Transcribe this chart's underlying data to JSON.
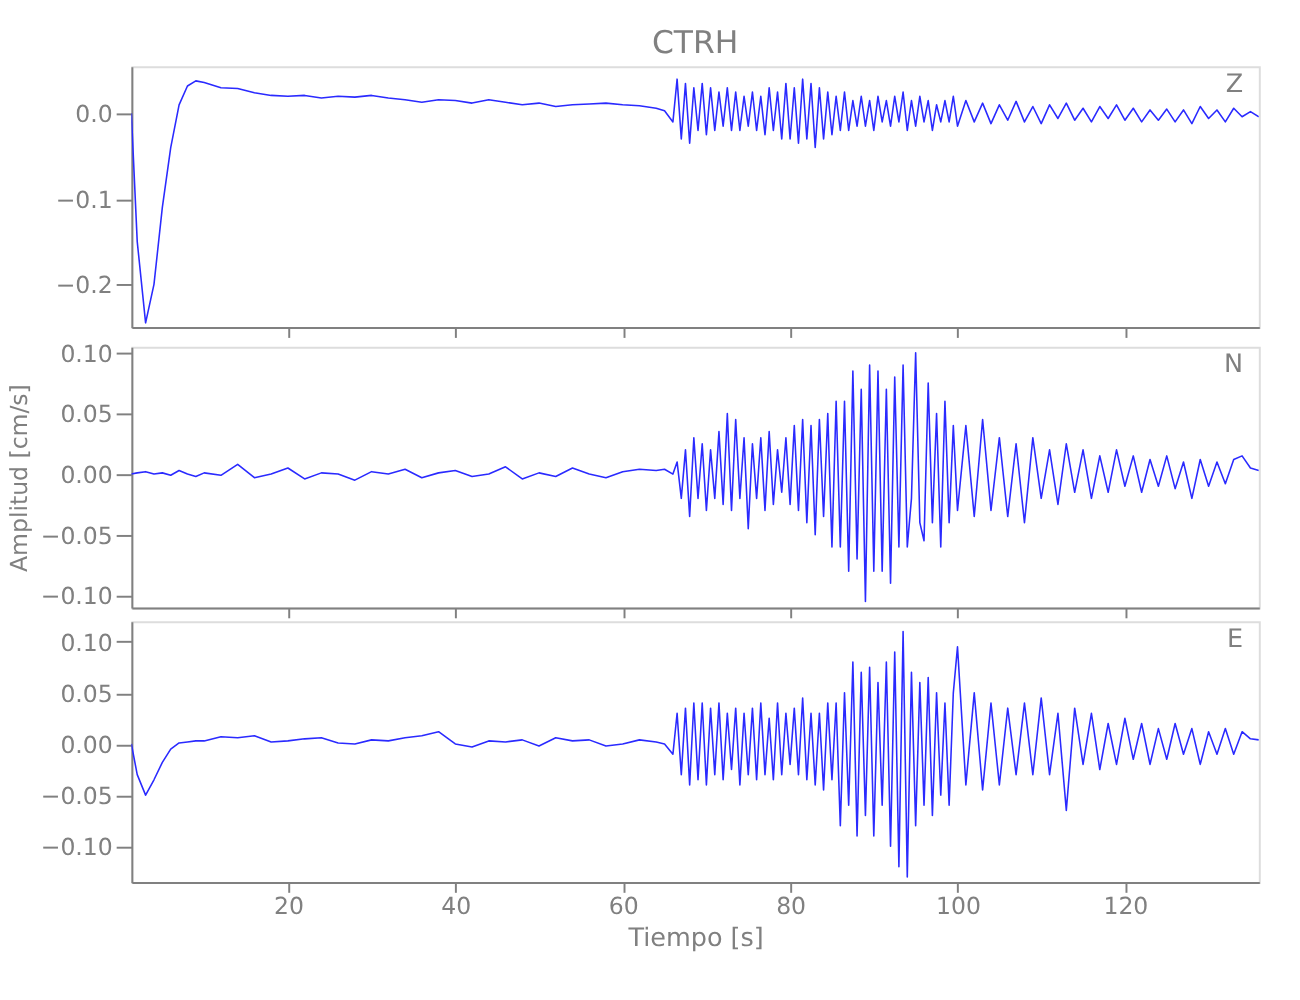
{
  "chart_data": [
    {
      "type": "line",
      "title": "CTRH",
      "annotations": [
        "Z"
      ],
      "tick_labels": "y",
      "grid": false,
      "line_style": "solid",
      "marker": "none",
      "xlim": [
        1.3,
        136
      ],
      "xticks": [
        20,
        40,
        60,
        80,
        100,
        120
      ],
      "ylim": [
        -0.25,
        0.055
      ],
      "yticks": [
        {
          "value": 0,
          "label": "0.0"
        },
        {
          "value": -0.1,
          "label": "−0.1"
        },
        {
          "value": -0.2,
          "label": "−0.2"
        }
      ],
      "x": [
        1.3,
        2,
        3,
        4,
        5,
        6,
        7,
        8,
        9,
        10,
        12,
        14,
        16,
        18,
        20,
        22,
        24,
        26,
        28,
        30,
        32,
        34,
        36,
        38,
        40,
        42,
        44,
        46,
        48,
        50,
        52,
        54,
        56,
        58,
        60,
        62,
        64,
        65,
        66,
        66.5,
        67,
        67.5,
        68,
        68.5,
        69,
        69.5,
        70,
        70.5,
        71,
        71.5,
        72,
        72.5,
        73,
        73.5,
        74,
        74.5,
        75,
        75.5,
        76,
        76.5,
        77,
        77.5,
        78,
        78.5,
        79,
        79.5,
        80,
        80.5,
        81,
        81.5,
        82,
        82.5,
        83,
        83.5,
        84,
        84.5,
        85,
        85.5,
        86,
        86.5,
        87,
        87.5,
        88,
        88.5,
        89,
        89.5,
        90,
        90.5,
        91,
        91.5,
        92,
        92.5,
        93,
        93.5,
        94,
        94.5,
        95,
        95.5,
        96,
        96.5,
        97,
        97.5,
        98,
        98.5,
        99,
        99.5,
        100,
        101,
        102,
        103,
        104,
        105,
        106,
        107,
        108,
        109,
        110,
        111,
        112,
        113,
        114,
        115,
        116,
        117,
        118,
        119,
        120,
        121,
        122,
        123,
        124,
        125,
        126,
        127,
        128,
        129,
        130,
        131,
        132,
        133,
        134,
        135,
        136
      ],
      "series": [
        {
          "color": "#2a2aff",
          "values": [
            0.0,
            -0.15,
            -0.245,
            -0.2,
            -0.11,
            -0.04,
            0.01,
            0.032,
            0.038,
            0.036,
            0.03,
            0.029,
            0.024,
            0.021,
            0.02,
            0.021,
            0.018,
            0.02,
            0.019,
            0.021,
            0.018,
            0.016,
            0.013,
            0.016,
            0.015,
            0.012,
            0.016,
            0.013,
            0.01,
            0.012,
            0.008,
            0.01,
            0.011,
            0.012,
            0.01,
            0.009,
            0.006,
            0.003,
            -0.01,
            0.04,
            -0.03,
            0.035,
            -0.035,
            0.03,
            -0.02,
            0.035,
            -0.025,
            0.03,
            -0.02,
            0.025,
            -0.015,
            0.03,
            -0.02,
            0.025,
            -0.02,
            0.02,
            -0.015,
            0.025,
            -0.02,
            0.02,
            -0.025,
            0.03,
            -0.02,
            0.025,
            -0.03,
            0.035,
            -0.03,
            0.03,
            -0.035,
            0.04,
            -0.03,
            0.035,
            -0.04,
            0.03,
            -0.03,
            0.025,
            -0.025,
            0.02,
            -0.02,
            0.025,
            -0.02,
            0.015,
            -0.015,
            0.02,
            -0.015,
            0.015,
            -0.02,
            0.02,
            -0.01,
            0.015,
            -0.015,
            0.02,
            -0.01,
            0.025,
            -0.02,
            0.015,
            -0.015,
            0.02,
            -0.01,
            0.015,
            -0.02,
            0.01,
            -0.01,
            0.015,
            -0.01,
            0.02,
            -0.015,
            0.015,
            -0.01,
            0.012,
            -0.012,
            0.01,
            -0.008,
            0.014,
            -0.01,
            0.008,
            -0.012,
            0.01,
            -0.006,
            0.012,
            -0.008,
            0.006,
            -0.01,
            0.008,
            -0.006,
            0.01,
            -0.008,
            0.006,
            -0.01,
            0.004,
            -0.008,
            0.005,
            -0.01,
            0.004,
            -0.012,
            0.008,
            -0.006,
            0.004,
            -0.01,
            0.006,
            -0.004,
            0.002,
            -0.004
          ]
        }
      ]
    },
    {
      "type": "line",
      "ylabel": "Amplitud [cm/s]",
      "annotations": [
        "N"
      ],
      "tick_labels": "y",
      "grid": false,
      "line_style": "solid",
      "marker": "none",
      "xlim": [
        1.3,
        136
      ],
      "xticks": [
        20,
        40,
        60,
        80,
        100,
        120
      ],
      "ylim": [
        -0.11,
        0.105
      ],
      "yticks": [
        {
          "value": 0.1,
          "label": "0.10"
        },
        {
          "value": 0.05,
          "label": "0.05"
        },
        {
          "value": 0,
          "label": "0.00"
        },
        {
          "value": -0.05,
          "label": "−0.05"
        },
        {
          "value": -0.1,
          "label": "−0.10"
        }
      ],
      "x": [
        1.3,
        2,
        3,
        4,
        5,
        6,
        7,
        8,
        9,
        10,
        12,
        14,
        16,
        18,
        20,
        22,
        24,
        26,
        28,
        30,
        32,
        34,
        36,
        38,
        40,
        42,
        44,
        46,
        48,
        50,
        52,
        54,
        56,
        58,
        60,
        62,
        64,
        65,
        66,
        66.5,
        67,
        67.5,
        68,
        68.5,
        69,
        69.5,
        70,
        70.5,
        71,
        71.5,
        72,
        72.5,
        73,
        73.5,
        74,
        74.5,
        75,
        75.5,
        76,
        76.5,
        77,
        77.5,
        78,
        78.5,
        79,
        79.5,
        80,
        80.5,
        81,
        81.5,
        82,
        82.5,
        83,
        83.5,
        84,
        84.5,
        85,
        85.5,
        86,
        86.5,
        87,
        87.5,
        88,
        88.5,
        89,
        89.5,
        90,
        90.5,
        91,
        91.5,
        92,
        92.5,
        93,
        93.5,
        94,
        94.5,
        95,
        95.5,
        96,
        96.5,
        97,
        97.5,
        98,
        98.5,
        99,
        99.5,
        100,
        101,
        102,
        103,
        104,
        105,
        106,
        107,
        108,
        109,
        110,
        111,
        112,
        113,
        114,
        115,
        116,
        117,
        118,
        119,
        120,
        121,
        122,
        123,
        124,
        125,
        126,
        127,
        128,
        129,
        130,
        131,
        132,
        133,
        134,
        135,
        136
      ],
      "series": [
        {
          "color": "#2a2aff",
          "values": [
            0.0,
            0.001,
            0.002,
            0.0,
            0.001,
            -0.001,
            0.003,
            0.0,
            -0.002,
            0.001,
            -0.001,
            0.008,
            -0.003,
            0.0,
            0.005,
            -0.004,
            0.001,
            0.0,
            -0.005,
            0.002,
            0.0,
            0.004,
            -0.003,
            0.001,
            0.003,
            -0.002,
            0.0,
            0.006,
            -0.004,
            0.001,
            -0.002,
            0.005,
            0.0,
            -0.003,
            0.002,
            0.004,
            0.003,
            0.004,
            0.0,
            0.01,
            -0.02,
            0.02,
            -0.035,
            0.03,
            -0.02,
            0.025,
            -0.03,
            0.02,
            -0.02,
            0.035,
            -0.025,
            0.05,
            -0.03,
            0.045,
            -0.02,
            0.03,
            -0.045,
            0.025,
            -0.02,
            0.03,
            -0.03,
            0.035,
            -0.025,
            0.02,
            -0.015,
            0.03,
            -0.025,
            0.04,
            -0.03,
            0.045,
            -0.04,
            0.04,
            -0.05,
            0.045,
            -0.035,
            0.05,
            -0.06,
            0.06,
            -0.06,
            0.06,
            -0.08,
            0.085,
            -0.07,
            0.07,
            -0.105,
            0.09,
            -0.08,
            0.085,
            -0.08,
            0.07,
            -0.09,
            0.08,
            -0.06,
            0.09,
            -0.06,
            -0.02,
            0.1,
            -0.04,
            -0.055,
            0.075,
            -0.04,
            0.05,
            -0.06,
            0.06,
            -0.04,
            0.04,
            -0.03,
            0.04,
            -0.035,
            0.045,
            -0.03,
            0.03,
            -0.035,
            0.025,
            -0.04,
            0.03,
            -0.02,
            0.02,
            -0.025,
            0.025,
            -0.015,
            0.02,
            -0.02,
            0.015,
            -0.015,
            0.02,
            -0.01,
            0.015,
            -0.015,
            0.012,
            -0.01,
            0.015,
            -0.012,
            0.01,
            -0.02,
            0.012,
            -0.01,
            0.01,
            -0.008,
            0.012,
            0.015,
            0.005,
            0.003
          ]
        }
      ]
    },
    {
      "type": "line",
      "xlabel": "Tiempo [s]",
      "annotations": [
        "E"
      ],
      "grid": false,
      "line_style": "solid",
      "marker": "none",
      "xlim": [
        1.3,
        136
      ],
      "xticks": [
        20,
        40,
        60,
        80,
        100,
        120
      ],
      "ylim": [
        -0.135,
        0.12
      ],
      "yticks": [
        {
          "value": 0.1,
          "label": "0.10"
        },
        {
          "value": 0.05,
          "label": "0.05"
        },
        {
          "value": 0,
          "label": "0.00"
        },
        {
          "value": -0.05,
          "label": "−0.05"
        },
        {
          "value": -0.1,
          "label": "−0.10"
        }
      ],
      "x": [
        1.3,
        2,
        3,
        4,
        5,
        6,
        7,
        8,
        9,
        10,
        12,
        14,
        16,
        18,
        20,
        22,
        24,
        26,
        28,
        30,
        32,
        34,
        36,
        38,
        40,
        42,
        44,
        46,
        48,
        50,
        52,
        54,
        56,
        58,
        60,
        62,
        64,
        65,
        66,
        66.5,
        67,
        67.5,
        68,
        68.5,
        69,
        69.5,
        70,
        70.5,
        71,
        71.5,
        72,
        72.5,
        73,
        73.5,
        74,
        74.5,
        75,
        75.5,
        76,
        76.5,
        77,
        77.5,
        78,
        78.5,
        79,
        79.5,
        80,
        80.5,
        81,
        81.5,
        82,
        82.5,
        83,
        83.5,
        84,
        84.5,
        85,
        85.5,
        86,
        86.5,
        87,
        87.5,
        88,
        88.5,
        89,
        89.5,
        90,
        90.5,
        91,
        91.5,
        92,
        92.5,
        93,
        93.5,
        94,
        94.5,
        95,
        95.5,
        96,
        96.5,
        97,
        97.5,
        98,
        98.5,
        99,
        99.5,
        100,
        101,
        102,
        103,
        104,
        105,
        106,
        107,
        108,
        109,
        110,
        111,
        112,
        113,
        114,
        115,
        116,
        117,
        118,
        119,
        120,
        121,
        122,
        123,
        124,
        125,
        126,
        127,
        128,
        129,
        130,
        131,
        132,
        133,
        134,
        135,
        136
      ],
      "series": [
        {
          "color": "#2a2aff",
          "values": [
            0.0,
            -0.03,
            -0.05,
            -0.035,
            -0.018,
            -0.005,
            0.001,
            0.002,
            0.003,
            0.003,
            0.007,
            0.006,
            0.008,
            0.002,
            0.003,
            0.005,
            0.006,
            0.001,
            0.0,
            0.004,
            0.003,
            0.006,
            0.008,
            0.012,
            0.0,
            -0.003,
            0.003,
            0.002,
            0.004,
            -0.002,
            0.006,
            0.003,
            0.004,
            -0.002,
            0.0,
            0.004,
            0.002,
            0.0,
            -0.01,
            0.03,
            -0.03,
            0.035,
            -0.04,
            0.04,
            -0.035,
            0.04,
            -0.04,
            0.035,
            -0.03,
            0.04,
            -0.035,
            0.03,
            -0.025,
            0.035,
            -0.04,
            0.03,
            -0.03,
            0.035,
            -0.035,
            0.04,
            -0.03,
            0.025,
            -0.035,
            0.04,
            -0.03,
            0.03,
            -0.02,
            0.035,
            -0.03,
            0.045,
            -0.035,
            0.03,
            -0.04,
            0.03,
            -0.045,
            0.04,
            -0.035,
            0.04,
            -0.08,
            0.05,
            -0.06,
            0.08,
            -0.09,
            0.07,
            -0.07,
            0.075,
            -0.09,
            0.06,
            -0.06,
            0.08,
            -0.1,
            0.09,
            -0.12,
            0.11,
            -0.13,
            0.07,
            -0.08,
            0.06,
            -0.06,
            0.065,
            -0.07,
            0.05,
            -0.05,
            0.04,
            -0.06,
            0.05,
            0.095,
            -0.04,
            0.05,
            -0.045,
            0.04,
            -0.04,
            0.035,
            -0.03,
            0.04,
            -0.03,
            0.045,
            -0.03,
            0.03,
            -0.065,
            0.035,
            -0.02,
            0.03,
            -0.025,
            0.02,
            -0.02,
            0.025,
            -0.015,
            0.02,
            -0.02,
            0.015,
            -0.015,
            0.02,
            -0.01,
            0.015,
            -0.02,
            0.012,
            -0.01,
            0.015,
            -0.01,
            0.012,
            0.005,
            0.004
          ]
        }
      ]
    }
  ]
}
